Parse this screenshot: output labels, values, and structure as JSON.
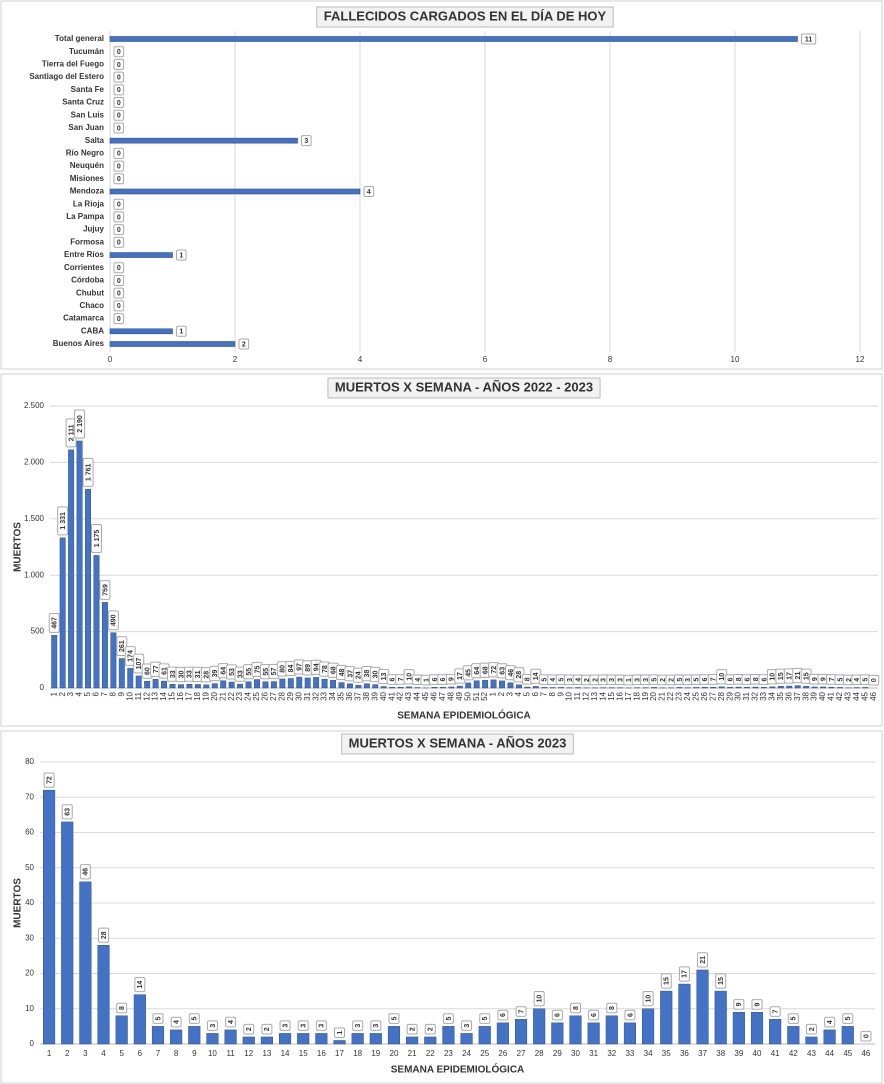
{
  "chart_data": [
    {
      "type": "bar",
      "orientation": "horizontal",
      "title": "FALLECIDOS CARGADOS EN EL DÍA DE HOY",
      "categories": [
        "Total general",
        "Tucumán",
        "Tierra del Fuego",
        "Santiago del Estero",
        "Santa Fe",
        "Santa Cruz",
        "San Luis",
        "San Juan",
        "Salta",
        "Río Negro",
        "Neuquén",
        "Misiones",
        "Mendoza",
        "La Rioja",
        "La Pampa",
        "Jujuy",
        "Formosa",
        "Entre Ríos",
        "Corrientes",
        "Córdoba",
        "Chubut",
        "Chaco",
        "Catamarca",
        "CABA",
        "Buenos Aires"
      ],
      "values": [
        11,
        0,
        0,
        0,
        0,
        0,
        0,
        0,
        3,
        0,
        0,
        0,
        4,
        0,
        0,
        0,
        0,
        1,
        0,
        0,
        0,
        0,
        0,
        1,
        2
      ],
      "color": "#4472c4",
      "xlim": [
        0,
        12
      ],
      "xticks": [
        0,
        2,
        4,
        6,
        8,
        10,
        12
      ],
      "grid": true
    },
    {
      "type": "bar",
      "orientation": "vertical",
      "title": "MUERTOS X SEMANA - AÑOS 2022 - 2023",
      "x_label": "SEMANA EPIDEMIOLÓGICA",
      "y_label": "MUERTOS",
      "categories": [
        1,
        2,
        3,
        4,
        5,
        6,
        7,
        8,
        9,
        10,
        11,
        12,
        13,
        14,
        15,
        16,
        17,
        18,
        19,
        20,
        21,
        22,
        23,
        24,
        25,
        26,
        27,
        28,
        29,
        30,
        31,
        32,
        33,
        34,
        35,
        36,
        37,
        38,
        39,
        40,
        41,
        42,
        43,
        44,
        45,
        46,
        47,
        48,
        49,
        50,
        51,
        52,
        1,
        2,
        3,
        4,
        5,
        6,
        7,
        8,
        9,
        10,
        11,
        12,
        13,
        14,
        15,
        16,
        17,
        18,
        19,
        20,
        21,
        22,
        23,
        24,
        25,
        26,
        27,
        28,
        29,
        30,
        31,
        32,
        33,
        34,
        35,
        36,
        37,
        38,
        39,
        40,
        41,
        42,
        43,
        44,
        45,
        46
      ],
      "values": [
        467,
        1331,
        2111,
        2190,
        1761,
        1175,
        759,
        490,
        261,
        174,
        107,
        60,
        77,
        61,
        33,
        30,
        33,
        31,
        28,
        39,
        64,
        53,
        33,
        55,
        75,
        55,
        57,
        80,
        84,
        97,
        89,
        94,
        78,
        68,
        48,
        37,
        24,
        38,
        30,
        13,
        6,
        7,
        10,
        4,
        1,
        6,
        6,
        9,
        17,
        45,
        64,
        68,
        72,
        63,
        46,
        28,
        8,
        14,
        5,
        4,
        5,
        3,
        4,
        2,
        2,
        3,
        3,
        3,
        1,
        3,
        3,
        5,
        2,
        2,
        5,
        3,
        5,
        6,
        7,
        10,
        6,
        8,
        6,
        8,
        6,
        10,
        15,
        17,
        21,
        15,
        9,
        9,
        7,
        5,
        2,
        4,
        5,
        0
      ],
      "value_labels": [
        "467",
        "1 331",
        "2 111",
        "2 190",
        "1 761",
        "1 175",
        "759",
        "490",
        "261",
        "174",
        "107",
        "60",
        "77",
        "61",
        "33",
        "30",
        "33",
        "31",
        "28",
        "39",
        "64",
        "53",
        "33",
        "55",
        "75",
        "55",
        "57",
        "80",
        "84",
        "97",
        "89",
        "94",
        "78",
        "68",
        "48",
        "37",
        "24",
        "38",
        "30",
        "13",
        "6",
        "7",
        "10",
        "4",
        "1",
        "6",
        "6",
        "9",
        "17",
        "45",
        "64",
        "68",
        "72",
        "63",
        "46",
        "28",
        "8",
        "14",
        "5",
        "4",
        "5",
        "3",
        "4",
        "2",
        "2",
        "3",
        "3",
        "3",
        "1",
        "3",
        "3",
        "5",
        "2",
        "2",
        "5",
        "3",
        "5",
        "6",
        "7",
        "10",
        "6",
        "8",
        "6",
        "8",
        "6",
        "10",
        "15",
        "17",
        "21",
        "15",
        "9",
        "9",
        "7",
        "5",
        "2",
        "4",
        "5",
        "0"
      ],
      "color": "#4472c4",
      "ylim": [
        0,
        2500
      ],
      "yticks": [
        0,
        500,
        {
          "value": 1000,
          "label": "1.000"
        },
        {
          "value": 1500,
          "label": "1.500"
        },
        {
          "value": 2000,
          "label": "2.000"
        },
        {
          "value": 2500,
          "label": "2.500"
        }
      ],
      "grid": true
    },
    {
      "type": "bar",
      "orientation": "vertical",
      "title": "MUERTOS X SEMANA - AÑOS 2023",
      "x_label": "SEMANA EPIDEMIOLÓGICA",
      "y_label": "MUERTOS",
      "categories": [
        1,
        2,
        3,
        4,
        5,
        6,
        7,
        8,
        9,
        10,
        11,
        12,
        13,
        14,
        15,
        16,
        17,
        18,
        19,
        20,
        21,
        22,
        23,
        24,
        25,
        26,
        27,
        28,
        29,
        30,
        31,
        32,
        33,
        34,
        35,
        36,
        37,
        38,
        39,
        40,
        41,
        42,
        43,
        44,
        45,
        46
      ],
      "values": [
        72,
        63,
        46,
        28,
        8,
        14,
        5,
        4,
        5,
        3,
        4,
        2,
        2,
        3,
        3,
        3,
        1,
        3,
        3,
        5,
        2,
        2,
        5,
        3,
        5,
        6,
        7,
        10,
        6,
        8,
        6,
        8,
        6,
        10,
        15,
        17,
        21,
        15,
        9,
        9,
        7,
        5,
        2,
        4,
        5,
        0
      ],
      "color": "#4472c4",
      "ylim": [
        0,
        80
      ],
      "yticks": [
        0,
        10,
        20,
        30,
        40,
        50,
        60,
        70,
        80
      ],
      "grid": true
    }
  ]
}
